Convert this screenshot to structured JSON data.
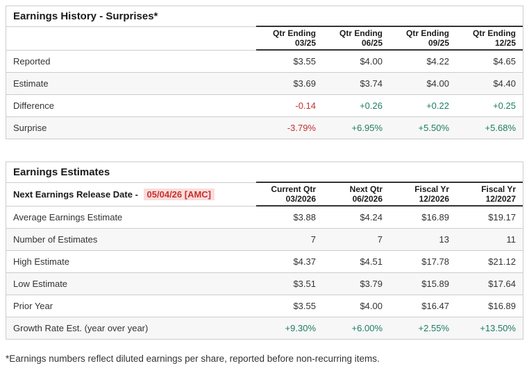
{
  "colors": {
    "negative": "#c5312d",
    "positive": "#1d7d63",
    "highlight_bg": "#fbdcdc",
    "border_light": "#cccccc",
    "border_dark": "#333333",
    "stripe": "#f7f7f7",
    "text": "#333333",
    "heading": "#1a1a1a"
  },
  "history": {
    "title": "Earnings History - Surprises*",
    "columns": [
      {
        "l1": "Qtr Ending",
        "l2": "03/25"
      },
      {
        "l1": "Qtr Ending",
        "l2": "06/25"
      },
      {
        "l1": "Qtr Ending",
        "l2": "09/25"
      },
      {
        "l1": "Qtr Ending",
        "l2": "12/25"
      }
    ],
    "rows": [
      {
        "label": "Reported",
        "values": [
          "$3.55",
          "$4.00",
          "$4.22",
          "$4.65"
        ]
      },
      {
        "label": "Estimate",
        "values": [
          "$3.69",
          "$3.74",
          "$4.00",
          "$4.40"
        ]
      },
      {
        "label": "Difference",
        "values": [
          "-0.14",
          "+0.26",
          "+0.22",
          "+0.25"
        ]
      },
      {
        "label": "Surprise",
        "values": [
          "-3.79%",
          "+6.95%",
          "+5.50%",
          "+5.68%"
        ]
      }
    ]
  },
  "estimates": {
    "title": "Earnings Estimates",
    "release_date_label": "Next Earnings Release Date -",
    "release_date_value": "05/04/26 [AMC]",
    "columns": [
      {
        "l1": "Current Qtr",
        "l2": "03/2026"
      },
      {
        "l1": "Next Qtr",
        "l2": "06/2026"
      },
      {
        "l1": "Fiscal Yr",
        "l2": "12/2026"
      },
      {
        "l1": "Fiscal Yr",
        "l2": "12/2027"
      }
    ],
    "rows": [
      {
        "label": "Average Earnings Estimate",
        "values": [
          "$3.88",
          "$4.24",
          "$16.89",
          "$19.17"
        ]
      },
      {
        "label": "Number of Estimates",
        "values": [
          "7",
          "7",
          "13",
          "11"
        ]
      },
      {
        "label": "High Estimate",
        "values": [
          "$4.37",
          "$4.51",
          "$17.78",
          "$21.12"
        ]
      },
      {
        "label": "Low Estimate",
        "values": [
          "$3.51",
          "$3.79",
          "$15.89",
          "$17.64"
        ]
      },
      {
        "label": "Prior Year",
        "values": [
          "$3.55",
          "$4.00",
          "$16.47",
          "$16.89"
        ]
      },
      {
        "label": "Growth Rate Est. (year over year)",
        "values": [
          "+9.30%",
          "+6.00%",
          "+2.55%",
          "+13.50%"
        ]
      }
    ]
  },
  "footnote": "*Earnings numbers reflect diluted earnings per share, reported before non-recurring items."
}
